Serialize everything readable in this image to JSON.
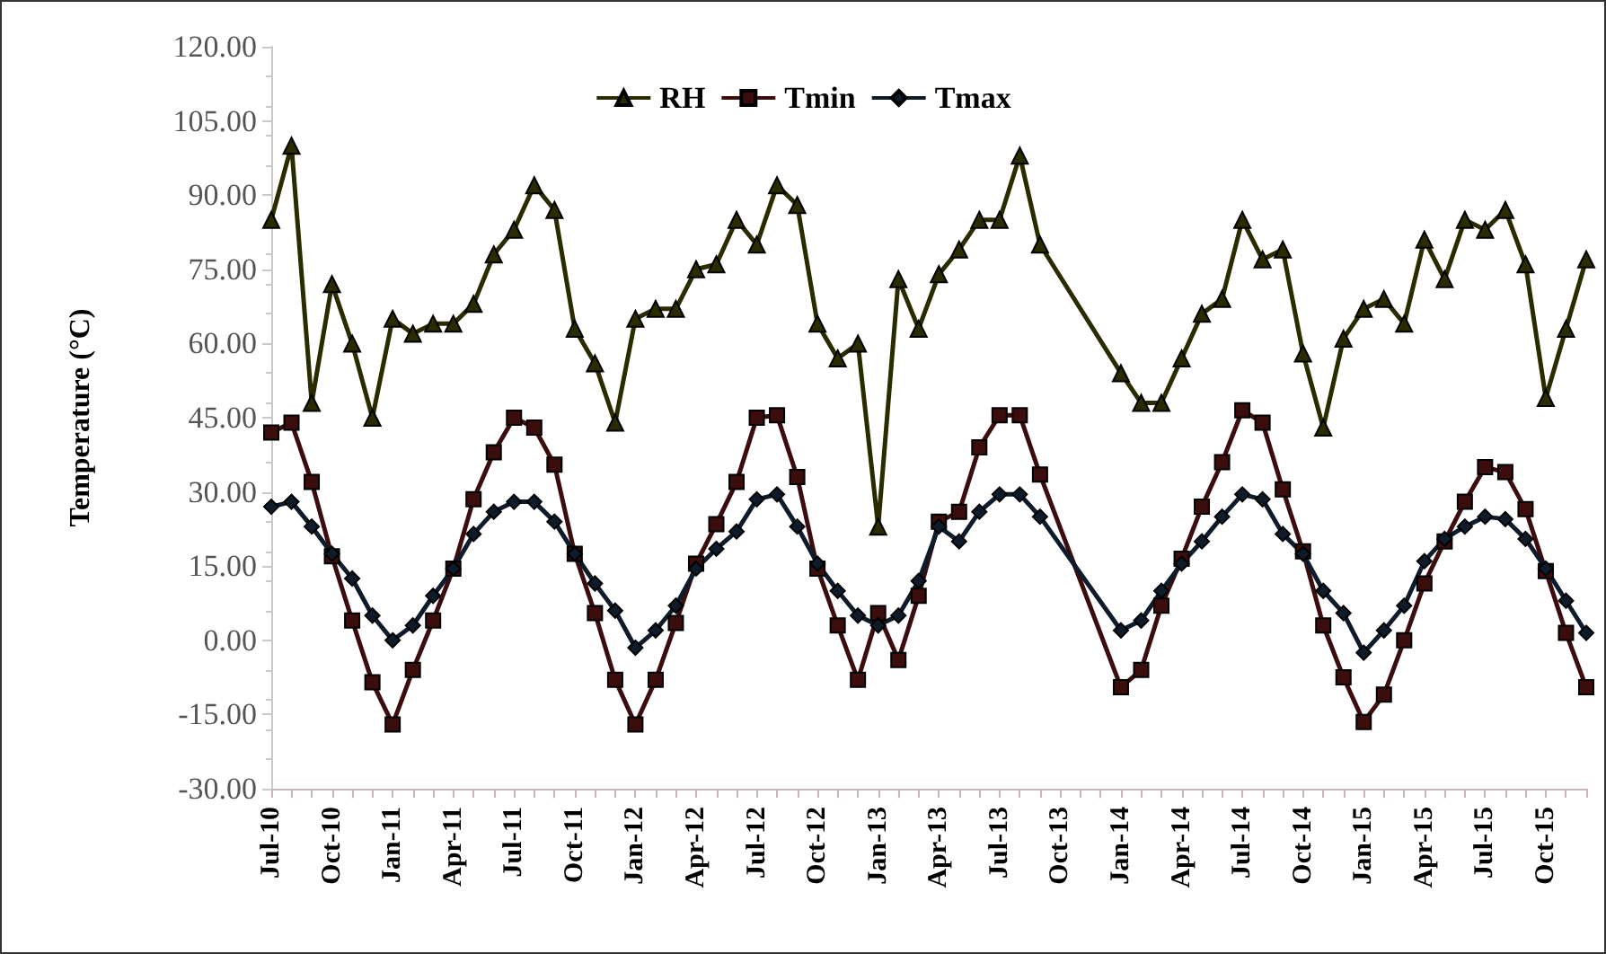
{
  "chart_data": {
    "type": "line",
    "ylabel": "Temperature (°C)",
    "categories": [
      "Jul-10",
      null,
      null,
      "Oct-10",
      null,
      null,
      "Jan-11",
      null,
      null,
      "Apr-11",
      null,
      null,
      "Jul-11",
      null,
      null,
      "Oct-11",
      null,
      null,
      "Jan-12",
      null,
      null,
      "Apr-12",
      null,
      null,
      "Jul-12",
      null,
      null,
      "Oct-12",
      null,
      null,
      "Jan-13",
      null,
      null,
      "Apr-13",
      null,
      null,
      "Jul-13",
      null,
      null,
      "Oct-13",
      null,
      null,
      "Jan-14",
      null,
      null,
      "Apr-14",
      null,
      null,
      "Jul-14",
      null,
      null,
      "Oct-14",
      null,
      null,
      "Jan-15",
      null,
      null,
      "Apr-15",
      null,
      null,
      "Jul-15",
      null,
      null,
      "Oct-15",
      null,
      null
    ],
    "series": [
      {
        "name": "RH",
        "color": "#2b2b00",
        "marker": "triangle",
        "values": [
          85,
          100,
          48,
          72,
          60,
          45,
          65,
          62,
          64,
          64,
          68,
          78,
          83,
          92,
          87,
          63,
          56,
          44,
          65,
          67,
          67,
          75,
          76,
          85,
          80,
          92,
          88,
          64,
          57,
          60,
          23,
          73,
          63,
          74,
          79,
          85,
          85,
          98,
          80,
          null,
          null,
          null,
          54,
          48,
          48,
          57,
          66,
          69,
          85,
          77,
          79,
          58,
          43,
          61,
          67,
          69,
          64,
          81,
          73,
          85,
          83,
          87,
          76,
          49,
          63,
          77
        ]
      },
      {
        "name": "Tmin",
        "color": "#3b0d0d",
        "marker": "square",
        "values": [
          42,
          44,
          32,
          17,
          4,
          -8.5,
          -17,
          -6,
          4,
          14.5,
          28.5,
          38,
          45,
          43,
          35.5,
          17.5,
          5.5,
          -8,
          -17,
          -8,
          3.5,
          15.5,
          23.5,
          32,
          45,
          45.5,
          33,
          14.5,
          3,
          -8,
          5.5,
          -4,
          9,
          24,
          26,
          39,
          45.5,
          45.5,
          33.5,
          null,
          null,
          null,
          -9.5,
          -6,
          7,
          16.5,
          27,
          36,
          46.5,
          44,
          30.5,
          18,
          3,
          -7.5,
          -16.5,
          -11,
          0,
          11.5,
          20,
          28,
          35,
          34,
          26.5,
          14,
          1.5,
          -9.5
        ]
      },
      {
        "name": "Tmax",
        "color": "#0d1b2a",
        "marker": "diamond",
        "values": [
          27,
          28,
          23,
          17.5,
          12.5,
          5,
          0,
          3,
          9,
          14.5,
          21.5,
          26,
          28,
          28,
          24,
          17.5,
          11.5,
          6,
          -1.5,
          2,
          7,
          14.5,
          18.5,
          22,
          28.5,
          29.5,
          23,
          15.5,
          10,
          5,
          3,
          5,
          12,
          23,
          20,
          26,
          29.5,
          29.5,
          25,
          null,
          null,
          null,
          2,
          4,
          10,
          15.5,
          20,
          25,
          29.5,
          28.5,
          21.5,
          17.5,
          10,
          5.5,
          -2.5,
          2,
          7,
          16,
          20.5,
          23,
          25,
          24.5,
          20.5,
          14.5,
          8,
          1.5
        ]
      }
    ],
    "ylim": [
      -30,
      120
    ],
    "yticks": [
      {
        "value": -30,
        "label": "-30.00"
      },
      {
        "value": -15,
        "label": "-15.00"
      },
      {
        "value": 0,
        "label": "0.00"
      },
      {
        "value": 15,
        "label": "15.00"
      },
      {
        "value": 30,
        "label": "30.00"
      },
      {
        "value": 45,
        "label": "45.00"
      },
      {
        "value": 60,
        "label": "60.00"
      },
      {
        "value": 75,
        "label": "75.00"
      },
      {
        "value": 90,
        "label": "90.00"
      },
      {
        "value": 105,
        "label": "105.00"
      },
      {
        "value": 120,
        "label": "120.00"
      }
    ],
    "grid": false,
    "legend": "top",
    "line_style": "solid"
  }
}
